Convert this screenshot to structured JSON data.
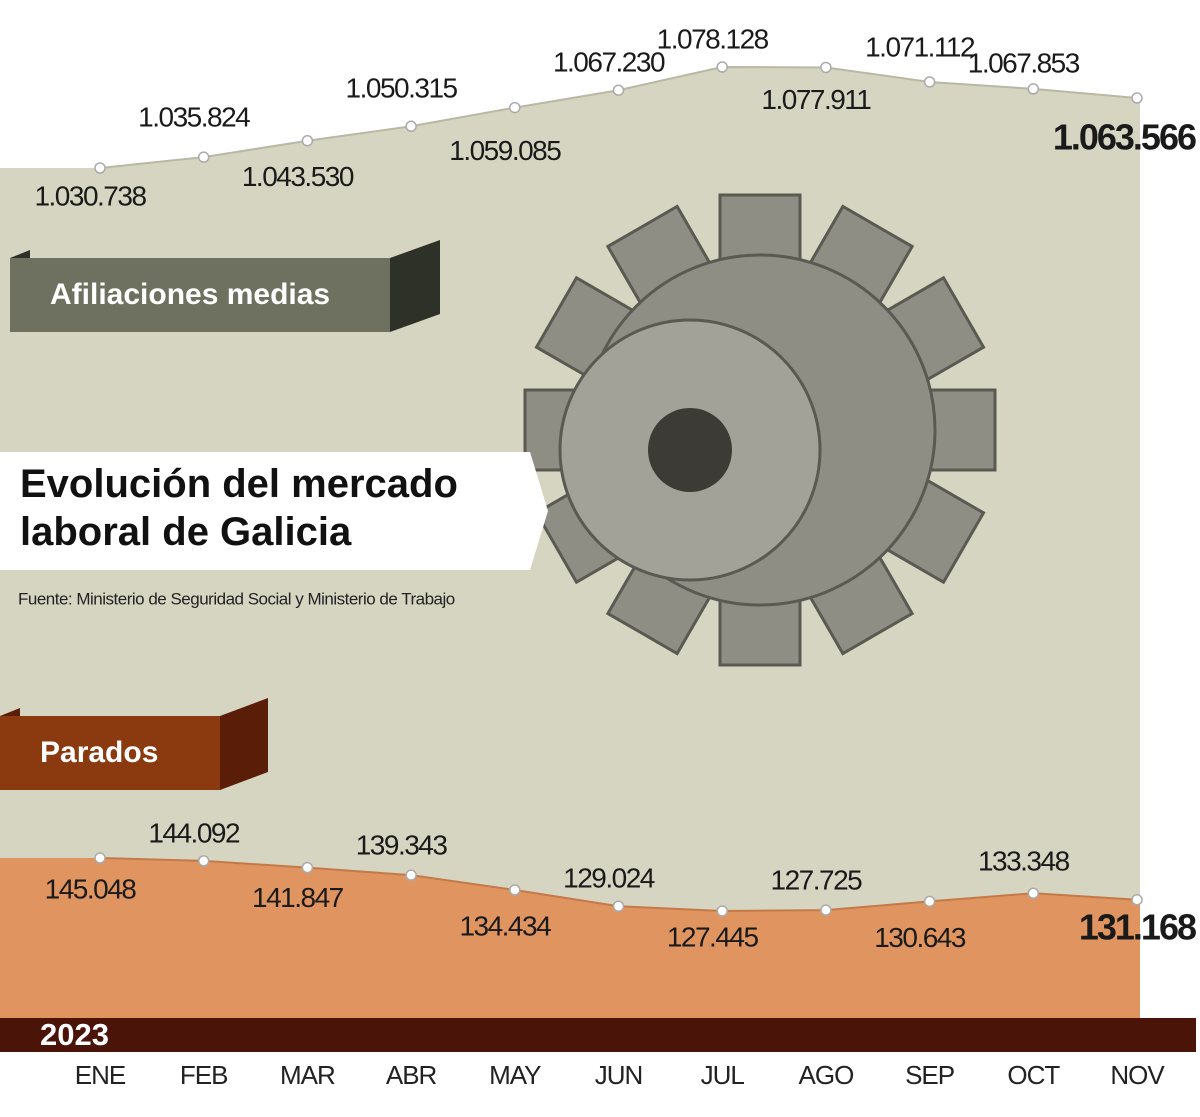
{
  "chart_data": {
    "type": "area",
    "title": "Evolución del mercado laboral de Galicia",
    "source": "Fuente: Ministerio de Seguridad Social y Ministerio de Trabajo",
    "year": "2023",
    "categories": [
      "ENE",
      "FEB",
      "MAR",
      "ABR",
      "MAY",
      "JUN",
      "JUL",
      "AGO",
      "SEP",
      "OCT",
      "NOV"
    ],
    "series": [
      {
        "name": "Afiliaciones medias",
        "color": "#d6d5c1",
        "values": [
          1030738,
          1035824,
          1043530,
          1050315,
          1059085,
          1067230,
          1078128,
          1077911,
          1071112,
          1067853,
          1063566
        ],
        "value_labels": [
          "1.030.738",
          "1.035.824",
          "1.043.530",
          "1.050.315",
          "1.059.085",
          "1.067.230",
          "1.078.128",
          "1.077.911",
          "1.071.112",
          "1.067.853",
          "1.063.566"
        ]
      },
      {
        "name": "Parados",
        "color": "#e09560",
        "values": [
          145048,
          144092,
          141847,
          139343,
          134434,
          129024,
          127445,
          127725,
          130643,
          133348,
          131168
        ],
        "value_labels": [
          "145.048",
          "144.092",
          "141.847",
          "139.343",
          "134.434",
          "129.024",
          "127.445",
          "127.725",
          "130.643",
          "133.348",
          "131.168"
        ]
      }
    ]
  }
}
